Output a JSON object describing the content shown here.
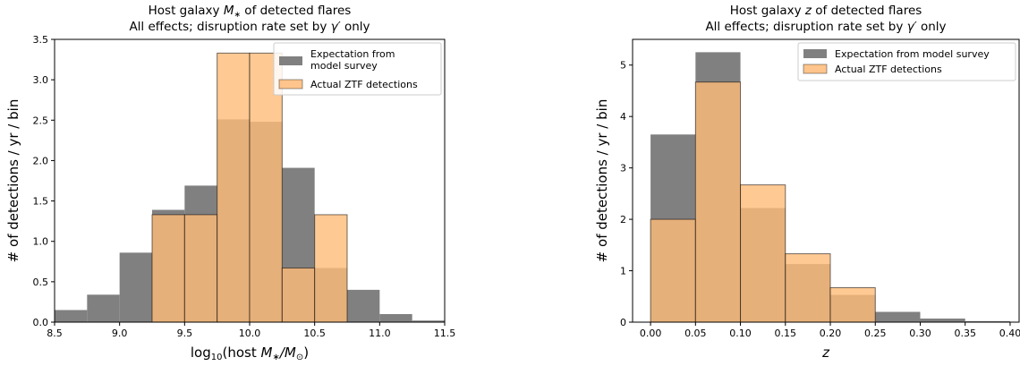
{
  "chart_data": [
    {
      "type": "bar",
      "title_line1_pre": "Host galaxy ",
      "title_line1_math": "M",
      "title_line1_sub": "∗",
      "title_line1_post": " of detected flares",
      "title_line2_pre": "All effects; disruption rate set by ",
      "title_line2_math": "γ′",
      "title_line2_post": " only",
      "xlabel_pre": "log",
      "xlabel_sub": "10",
      "xlabel_mid": "(host ",
      "xlabel_math": "M",
      "xlabel_sub2": "∗",
      "xlabel_slash": "/",
      "xlabel_math2": "M",
      "xlabel_sub3": "⊙",
      "xlabel_post": ")",
      "ylabel": "# of detections / yr / bin",
      "xlim": [
        8.5,
        11.5
      ],
      "ylim": [
        0,
        3.5
      ],
      "xticks": [
        "8.5",
        "9.0",
        "9.5",
        "10.0",
        "10.5",
        "11.0",
        "11.5"
      ],
      "yticks": [
        "0.0",
        "0.5",
        "1.0",
        "1.5",
        "2.0",
        "2.5",
        "3.0",
        "3.5"
      ],
      "bin_edges": [
        8.5,
        8.75,
        9.0,
        9.25,
        9.5,
        9.75,
        10.0,
        10.25,
        10.5,
        10.75,
        11.0,
        11.25,
        11.5
      ],
      "legend_position": "top-right",
      "series": [
        {
          "name_line1": "Expectation from",
          "name_line2": "model survey",
          "color": "#808080",
          "values": [
            0.15,
            0.34,
            0.86,
            1.39,
            1.69,
            2.51,
            2.48,
            1.91,
            0.67,
            0.4,
            0.1,
            0.02
          ]
        },
        {
          "name_line1": "Actual ZTF detections",
          "name_line2": "",
          "color": "#ffbb78",
          "values": [
            0,
            0,
            0,
            1.33,
            1.33,
            3.33,
            3.33,
            0.67,
            1.33,
            0,
            0,
            0
          ]
        }
      ]
    },
    {
      "type": "bar",
      "title_line1_pre": "Host galaxy ",
      "title_line1_math": "z",
      "title_line1_sub": "",
      "title_line1_post": " of detected flares",
      "title_line2_pre": "All effects; disruption rate set by ",
      "title_line2_math": "γ′",
      "title_line2_post": " only",
      "xlabel_math": "z",
      "ylabel": "# of detections / yr / bin",
      "xlim": [
        -0.02,
        0.41
      ],
      "ylim": [
        0,
        5.5
      ],
      "xticks": [
        "0.00",
        "0.05",
        "0.10",
        "0.15",
        "0.20",
        "0.25",
        "0.30",
        "0.35",
        "0.40"
      ],
      "xtick_values": [
        0.0,
        0.05,
        0.1,
        0.15,
        0.2,
        0.25,
        0.3,
        0.35,
        0.4
      ],
      "yticks": [
        "0",
        "1",
        "2",
        "3",
        "4",
        "5"
      ],
      "bin_edges": [
        0.0,
        0.05,
        0.1,
        0.15,
        0.2,
        0.25,
        0.3,
        0.35,
        0.4
      ],
      "legend_position": "top-right",
      "series": [
        {
          "name_line1": "Expectation from model survey",
          "name_line2": "",
          "color": "#808080",
          "values": [
            3.65,
            5.25,
            2.22,
            1.13,
            0.53,
            0.2,
            0.07,
            0.02
          ]
        },
        {
          "name_line1": "Actual ZTF detections",
          "name_line2": "",
          "color": "#ffbb78",
          "values": [
            2.0,
            4.67,
            2.67,
            1.33,
            0.67,
            0,
            0,
            0
          ]
        }
      ]
    }
  ]
}
